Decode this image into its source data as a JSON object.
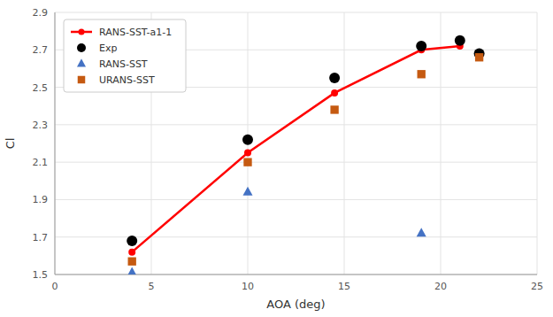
{
  "chart_data": {
    "type": "line",
    "xlabel": "AOA (deg)",
    "ylabel": "Cl",
    "xlim": [
      0,
      25
    ],
    "ylim": [
      1.5,
      2.9
    ],
    "xticks": [
      0,
      5,
      10,
      15,
      20,
      25
    ],
    "yticks": [
      1.5,
      1.7,
      1.9,
      2.1,
      2.3,
      2.5,
      2.7,
      2.9
    ],
    "grid": true,
    "legend": "upper left",
    "series": [
      {
        "name": "RANS-SST-a1-1",
        "type": "line",
        "marker": "circle",
        "line_style": "solid",
        "color": "#FF0000",
        "x": [
          4,
          10,
          14.5,
          19,
          21
        ],
        "values": [
          1.62,
          2.15,
          2.47,
          2.7,
          2.72
        ]
      },
      {
        "name": "Exp",
        "type": "scatter",
        "marker": "circle",
        "color": "#000000",
        "x": [
          4,
          10,
          14.5,
          19,
          21,
          22
        ],
        "values": [
          1.68,
          2.22,
          2.55,
          2.72,
          2.75,
          2.68
        ]
      },
      {
        "name": "RANS-SST",
        "type": "scatter",
        "marker": "triangle",
        "color": "#4472C4",
        "x": [
          4,
          10,
          19
        ],
        "values": [
          1.51,
          1.94,
          1.72
        ]
      },
      {
        "name": "URANS-SST",
        "type": "scatter",
        "marker": "square",
        "color": "#C55A11",
        "x": [
          4,
          10,
          14.5,
          19,
          22
        ],
        "values": [
          1.57,
          2.1,
          2.38,
          2.57,
          2.66
        ]
      }
    ]
  }
}
